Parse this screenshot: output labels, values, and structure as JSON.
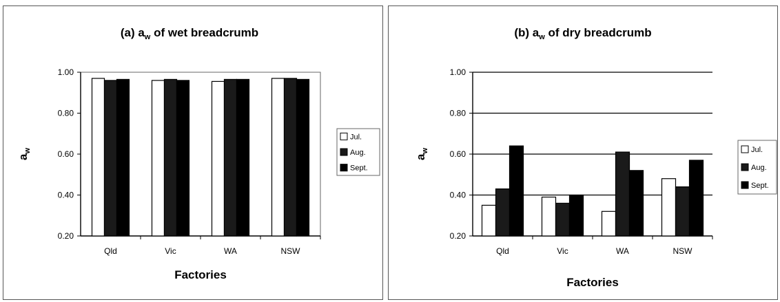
{
  "chart_data": [
    {
      "type": "bar",
      "title": {
        "prefix": "(a) a",
        "sub": "w",
        "suffix": " of wet breadcrumb"
      },
      "ylabel": {
        "main": "a",
        "sub": "w"
      },
      "xlabel": "Factories",
      "categories": [
        "Qld",
        "Vic",
        "WA",
        "NSW"
      ],
      "ylim": [
        0.2,
        1.0
      ],
      "yticks": [
        "0.20",
        "0.40",
        "0.60",
        "0.80",
        "1.00"
      ],
      "grid": false,
      "legend_position": "right",
      "series": [
        {
          "name": "Jul.",
          "color": "#ffffff",
          "values": [
            0.97,
            0.96,
            0.955,
            0.97
          ]
        },
        {
          "name": "Aug.",
          "color": "#1a1a1a",
          "values": [
            0.96,
            0.965,
            0.965,
            0.97
          ]
        },
        {
          "name": "Sept.",
          "color": "#000000",
          "values": [
            0.965,
            0.96,
            0.965,
            0.965
          ]
        }
      ]
    },
    {
      "type": "bar",
      "title": {
        "prefix": "(b) a",
        "sub": "w",
        "suffix": " of dry breadcrumb"
      },
      "ylabel": {
        "main": "a",
        "sub": "w"
      },
      "xlabel": "Factories",
      "categories": [
        "Qld",
        "Vic",
        "WA",
        "NSW"
      ],
      "ylim": [
        0.2,
        1.0
      ],
      "yticks": [
        "0.20",
        "0.40",
        "0.60",
        "0.80",
        "1.00"
      ],
      "grid": true,
      "legend_position": "right",
      "series": [
        {
          "name": "Jul.",
          "color": "#ffffff",
          "values": [
            0.35,
            0.39,
            0.32,
            0.48
          ]
        },
        {
          "name": "Aug.",
          "color": "#1a1a1a",
          "values": [
            0.43,
            0.36,
            0.61,
            0.44
          ]
        },
        {
          "name": "Sept.",
          "color": "#000000",
          "values": [
            0.64,
            0.4,
            0.52,
            0.57
          ]
        }
      ]
    }
  ]
}
